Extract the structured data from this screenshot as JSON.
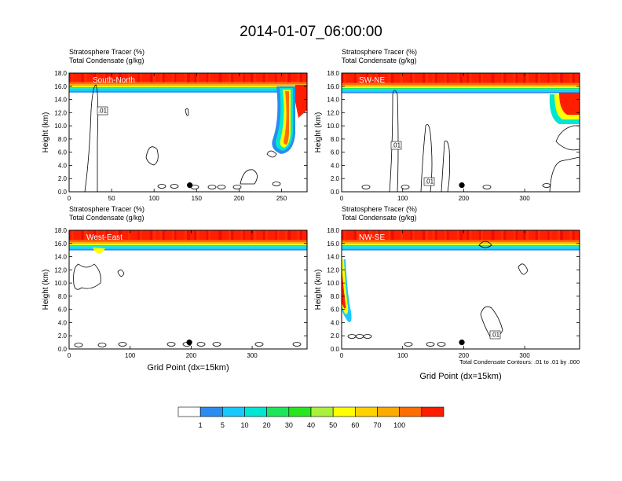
{
  "title": "2014-01-07_06:00:00",
  "panel_title_1": "Stratosphere Tracer   (%)",
  "panel_title_2": "Total Condensate   (g/kg)",
  "contour_note": "Total Condensate Contours: .01 to .01 by .000",
  "colorbar": {
    "colors": [
      "#ffffff",
      "#2a8cf0",
      "#19c8ff",
      "#00e6d2",
      "#1ee65a",
      "#28e61e",
      "#aaf03c",
      "#ffff00",
      "#ffd200",
      "#ffaa00",
      "#ff6e00",
      "#ff1e00"
    ],
    "labels": [
      "1",
      "5",
      "10",
      "20",
      "30",
      "40",
      "50",
      "60",
      "70",
      "100"
    ]
  },
  "chart_data": [
    {
      "type": "contour",
      "panel": "South-North",
      "ylabel": "Height (km)",
      "xlabel": "",
      "ylim": [
        0,
        18
      ],
      "yticks": [
        "0.0",
        "2.0",
        "4.0",
        "6.0",
        "8.0",
        "10.0",
        "12.0",
        "14.0",
        "16.0",
        "18.0"
      ],
      "xlim": [
        0,
        280
      ],
      "xticks": [
        0,
        50,
        100,
        150,
        200,
        250
      ],
      "tropopause_km": 15.7,
      "contour_label": ".01",
      "marker": {
        "x": 142,
        "y_km": 1.0
      }
    },
    {
      "type": "contour",
      "panel": "SW-NE",
      "ylabel": "Height (km)",
      "xlabel": "",
      "ylim": [
        0,
        18
      ],
      "yticks": [
        "0.0",
        "2.0",
        "4.0",
        "6.0",
        "8.0",
        "10.0",
        "12.0",
        "14.0",
        "16.0",
        "18.0"
      ],
      "xlim": [
        0,
        390
      ],
      "xticks": [
        0,
        100,
        200,
        300
      ],
      "tropopause_km": 15.6,
      "contour_label": ".01",
      "marker": {
        "x": 197,
        "y_km": 1.0
      }
    },
    {
      "type": "contour",
      "panel": "West-East",
      "ylabel": "Height (km)",
      "xlabel": "Grid Point (dx=15km)",
      "ylim": [
        0,
        18
      ],
      "yticks": [
        "0.0",
        "2.0",
        "4.0",
        "6.0",
        "8.0",
        "10.0",
        "12.0",
        "14.0",
        "16.0",
        "18.0"
      ],
      "xlim": [
        0,
        390
      ],
      "xticks": [
        0,
        100,
        200,
        300
      ],
      "tropopause_km": 15.6,
      "contour_label": "",
      "marker": {
        "x": 197,
        "y_km": 1.0
      }
    },
    {
      "type": "contour",
      "panel": "NW-SE",
      "ylabel": "Height (km)",
      "xlabel": "Grid Point (dx=15km)",
      "ylim": [
        0,
        18
      ],
      "yticks": [
        "0.0",
        "2.0",
        "4.0",
        "6.0",
        "8.0",
        "10.0",
        "12.0",
        "14.0",
        "16.0",
        "18.0"
      ],
      "xlim": [
        0,
        390
      ],
      "xticks": [
        0,
        100,
        200,
        300
      ],
      "tropopause_km": 15.6,
      "contour_label": ".01",
      "marker": {
        "x": 197,
        "y_km": 1.0
      }
    }
  ]
}
